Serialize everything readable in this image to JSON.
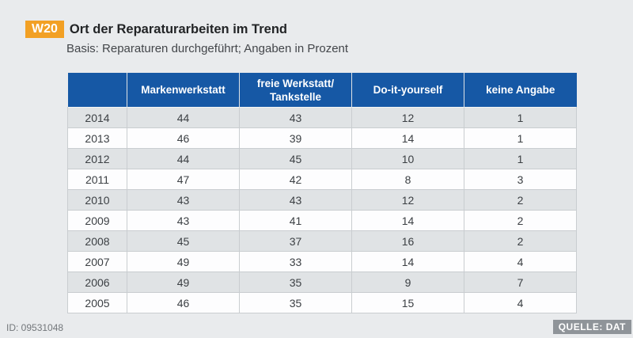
{
  "header": {
    "badge": "W20",
    "title": "Ort der Reparaturarbeiten im Trend",
    "subtitle": "Basis: Reparaturen durchgeführt; Angaben in Prozent"
  },
  "footer": {
    "id_label": "ID: 09531048",
    "source_label": "QUELLE: DAT"
  },
  "colors": {
    "header_blue": "#1658a5",
    "badge_orange": "#f2a024",
    "row_alt_gray": "#e0e3e5",
    "page_background": "#e9ebed",
    "source_badge_gray": "#8f9499"
  },
  "chart_data": {
    "type": "table",
    "title": "Ort der Reparaturarbeiten im Trend",
    "subtitle": "Basis: Reparaturen durchgeführt; Angaben in Prozent",
    "unit": "Prozent",
    "columns": [
      "Markenwerkstatt",
      "freie Werkstatt/\nTankstelle",
      "Do-it-yourself",
      "keine Angabe"
    ],
    "rows": [
      {
        "year": "2014",
        "values": [
          44,
          43,
          12,
          1
        ]
      },
      {
        "year": "2013",
        "values": [
          46,
          39,
          14,
          1
        ]
      },
      {
        "year": "2012",
        "values": [
          44,
          45,
          10,
          1
        ]
      },
      {
        "year": "2011",
        "values": [
          47,
          42,
          8,
          3
        ]
      },
      {
        "year": "2010",
        "values": [
          43,
          43,
          12,
          2
        ]
      },
      {
        "year": "2009",
        "values": [
          43,
          41,
          14,
          2
        ]
      },
      {
        "year": "2008",
        "values": [
          45,
          37,
          16,
          2
        ]
      },
      {
        "year": "2007",
        "values": [
          49,
          33,
          14,
          4
        ]
      },
      {
        "year": "2006",
        "values": [
          49,
          35,
          9,
          7
        ]
      },
      {
        "year": "2005",
        "values": [
          46,
          35,
          15,
          4
        ]
      }
    ]
  }
}
